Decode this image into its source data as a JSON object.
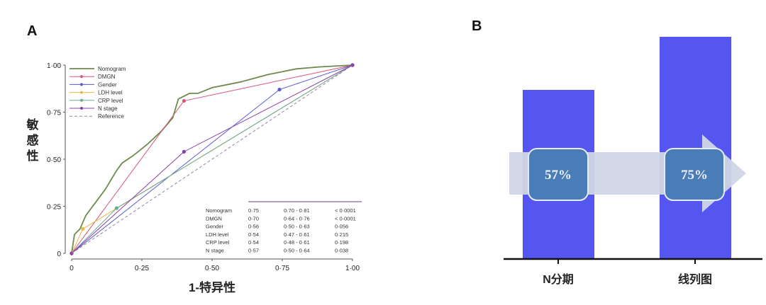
{
  "chart_data": [
    {
      "panel": "A",
      "type": "line",
      "title": "",
      "xlabel": "1-特异性",
      "ylabel": [
        "敏",
        "感",
        "性"
      ],
      "xlim": [
        0,
        1
      ],
      "ylim": [
        0,
        1
      ],
      "xticks": [
        "0",
        "0·25",
        "0·50",
        "0·75",
        "1·00"
      ],
      "yticks": [
        "0",
        "0·25",
        "0·50",
        "0·75",
        "1·00"
      ],
      "legend_position": "top-left",
      "series": [
        {
          "name": "Nomogram",
          "color": "#6e8a4c",
          "dash": false,
          "marker": false,
          "x": [
            0,
            0.01,
            0.03,
            0.05,
            0.08,
            0.12,
            0.16,
            0.18,
            0.22,
            0.27,
            0.32,
            0.36,
            0.38,
            0.42,
            0.45,
            0.5,
            0.6,
            0.7,
            0.8,
            0.88,
            1
          ],
          "y": [
            0,
            0.1,
            0.13,
            0.2,
            0.26,
            0.34,
            0.44,
            0.48,
            0.52,
            0.58,
            0.65,
            0.72,
            0.82,
            0.85,
            0.85,
            0.88,
            0.91,
            0.95,
            0.98,
            0.99,
            1
          ]
        },
        {
          "name": "DMGN",
          "color": "#d9567a",
          "dash": false,
          "marker": true,
          "x": [
            0,
            0.4,
            1
          ],
          "y": [
            0,
            0.81,
            1
          ]
        },
        {
          "name": "Gender",
          "color": "#5a5ad6",
          "dash": false,
          "marker": true,
          "x": [
            0,
            0.74,
            1
          ],
          "y": [
            0,
            0.87,
            1
          ]
        },
        {
          "name": "LDH level",
          "color": "#e6b84a",
          "dash": false,
          "marker": true,
          "x": [
            0,
            0.04,
            1
          ],
          "y": [
            0,
            0.13,
            1
          ]
        },
        {
          "name": "CRP level",
          "color": "#6aa89a",
          "dash": false,
          "marker": true,
          "x": [
            0,
            0.16,
            1
          ],
          "y": [
            0,
            0.24,
            1
          ]
        },
        {
          "name": "N stage",
          "color": "#8a3fa8",
          "dash": false,
          "marker": true,
          "x": [
            0,
            0.4,
            1
          ],
          "y": [
            0,
            0.54,
            1
          ]
        },
        {
          "name": "Reference",
          "color": "#9a7fae",
          "dash": true,
          "marker": false,
          "x": [
            0,
            1
          ],
          "y": [
            0,
            1
          ]
        }
      ],
      "table": [
        [
          "Nomogram",
          "0·75",
          "0·70 - 0·81",
          "< 0·0001"
        ],
        [
          "DMGN",
          "0·70",
          "0·64 - 0·76",
          "< 0·0001"
        ],
        [
          "Gender",
          "0·56",
          "0·50 - 0·63",
          "0·056"
        ],
        [
          "LDH level",
          "0·54",
          "0·47 - 0·61",
          "0·215"
        ],
        [
          "CRP level",
          "0·54",
          "0·48 - 0·61",
          "0·198"
        ],
        [
          "N stage",
          "0·57",
          "0·50 - 0·64",
          "0·038"
        ]
      ]
    },
    {
      "panel": "B",
      "type": "bar",
      "categories": [
        "N分期",
        "线列图"
      ],
      "values": [
        57,
        75
      ],
      "value_labels": [
        "57%",
        "75%"
      ],
      "bar_color": "#5555f0",
      "ylim": [
        0,
        90
      ]
    }
  ],
  "labels": {
    "panel_a": "A",
    "panel_b": "B"
  }
}
